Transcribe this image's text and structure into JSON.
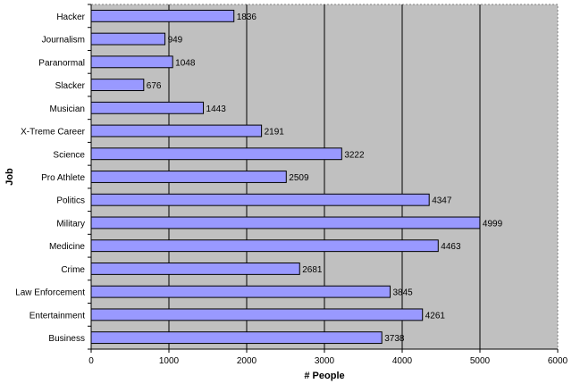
{
  "chart_data": {
    "type": "bar",
    "orientation": "horizontal",
    "categories": [
      "Hacker",
      "Journalism",
      "Paranormal",
      "Slacker",
      "Musician",
      "X-Treme Career",
      "Science",
      "Pro Athlete",
      "Politics",
      "Military",
      "Medicine",
      "Crime",
      "Law Enforcement",
      "Entertainment",
      "Business"
    ],
    "values": [
      1836,
      949,
      1048,
      676,
      1443,
      2191,
      3222,
      2509,
      4347,
      4999,
      4463,
      2681,
      3845,
      4261,
      3738
    ],
    "data_labels": [
      "1836",
      "949",
      "1048",
      "676",
      "1443",
      "2191",
      "3222",
      "2509",
      "4347",
      "4999",
      "4463",
      "2681",
      "3845",
      "4261",
      "3738"
    ],
    "xlabel": "# People",
    "ylabel": "Job",
    "xlim": [
      0,
      6000
    ],
    "x_ticks": [
      0,
      1000,
      2000,
      3000,
      4000,
      5000,
      6000
    ],
    "x_tick_labels": [
      "0",
      "1000",
      "2000",
      "3000",
      "4000",
      "5000",
      "6000"
    ],
    "grid": "vertical",
    "legend": "none",
    "colors": {
      "bar_fill": "#9999ff",
      "bar_stroke": "#000000",
      "plot_background": "#c0c0c0",
      "gridline": "#000000"
    }
  }
}
